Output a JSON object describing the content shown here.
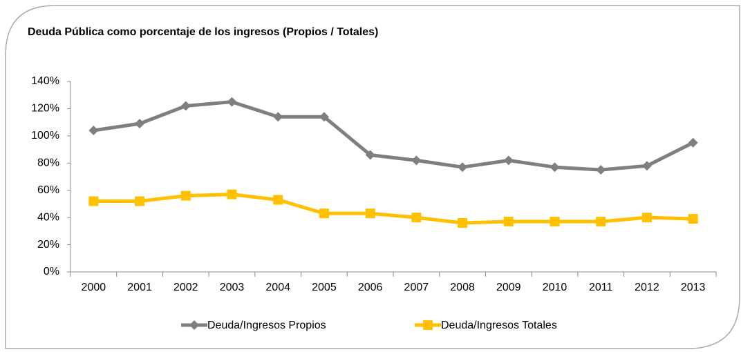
{
  "chart_data": {
    "type": "line",
    "title": "Deuda Pública como porcentaje de los ingresos (Propios / Totales)",
    "categories": [
      "2000",
      "2001",
      "2002",
      "2003",
      "2004",
      "2005",
      "2006",
      "2007",
      "2008",
      "2009",
      "2010",
      "2011",
      "2012",
      "2013"
    ],
    "series": [
      {
        "name": "Deuda/Ingresos Propios",
        "color": "#7f7f7f",
        "marker": "diamond",
        "values": [
          104,
          109,
          122,
          125,
          114,
          114,
          86,
          82,
          77,
          82,
          77,
          75,
          78,
          95
        ]
      },
      {
        "name": "Deuda/Ingresos Totales",
        "color": "#ffc000",
        "marker": "square",
        "values": [
          52,
          52,
          56,
          57,
          53,
          43,
          43,
          40,
          36,
          37,
          37,
          37,
          40,
          39
        ]
      }
    ],
    "ylim": [
      0,
      140
    ],
    "yticks": [
      {
        "value": 0,
        "label": "0%"
      },
      {
        "value": 20,
        "label": "20%"
      },
      {
        "value": 40,
        "label": "40%"
      },
      {
        "value": 60,
        "label": "60%"
      },
      {
        "value": 80,
        "label": "80%"
      },
      {
        "value": 100,
        "label": "100%"
      },
      {
        "value": 120,
        "label": "120%"
      },
      {
        "value": 140,
        "label": "140%"
      }
    ],
    "legend": "bottom"
  }
}
